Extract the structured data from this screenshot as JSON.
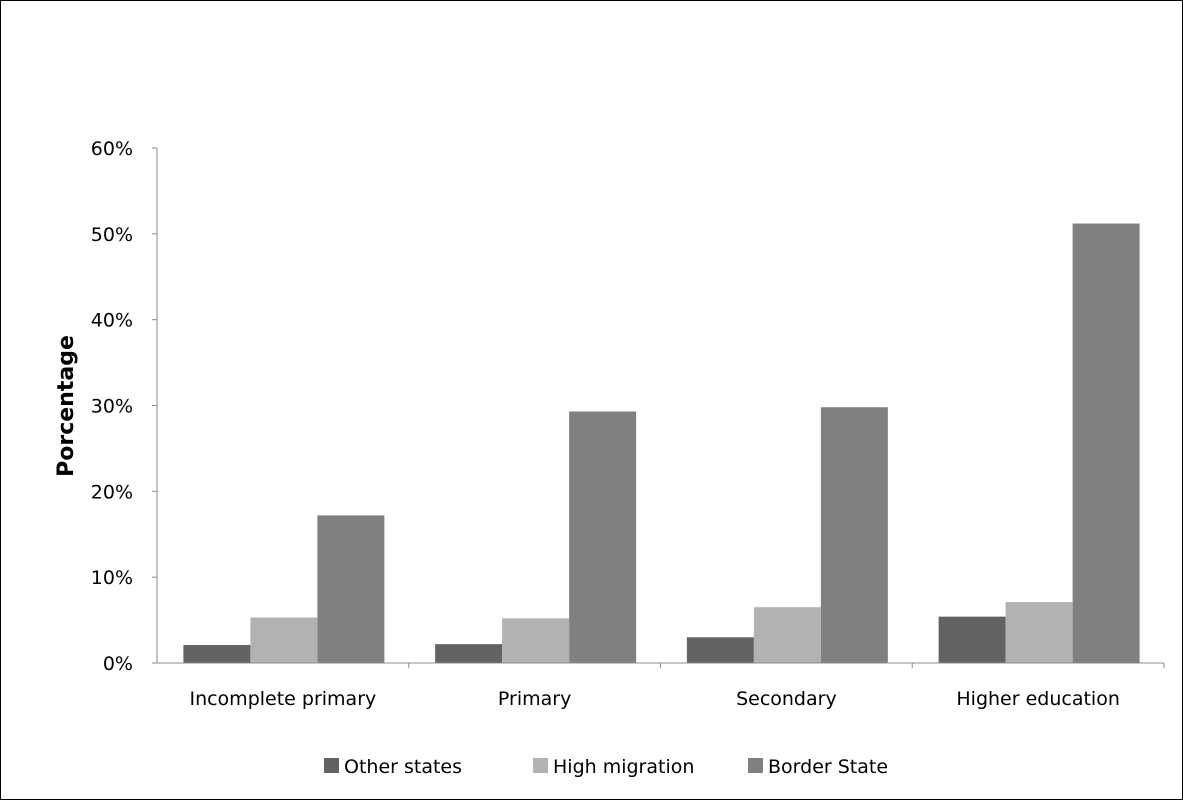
{
  "chart_data": {
    "type": "bar",
    "title": "",
    "xlabel": "",
    "ylabel": "Porcentage",
    "categories": [
      "Incomplete primary",
      "Primary",
      "Secondary",
      "Higher education"
    ],
    "series": [
      {
        "name": "Other states",
        "color": "#636363",
        "values": [
          2.1,
          2.2,
          3.0,
          5.4
        ]
      },
      {
        "name": "High migration",
        "color": "#b2b2b2",
        "values": [
          5.3,
          5.2,
          6.5,
          7.1
        ]
      },
      {
        "name": "Border State",
        "color": "#808080",
        "values": [
          17.2,
          29.3,
          29.8,
          51.2
        ]
      }
    ],
    "ylim": [
      0,
      60
    ],
    "yticks": [
      0,
      10,
      20,
      30,
      40,
      50,
      60
    ],
    "ytick_labels": [
      "0%",
      "10%",
      "20%",
      "30%",
      "40%",
      "50%",
      "60%"
    ],
    "grid": false,
    "legend_position": "bottom"
  }
}
